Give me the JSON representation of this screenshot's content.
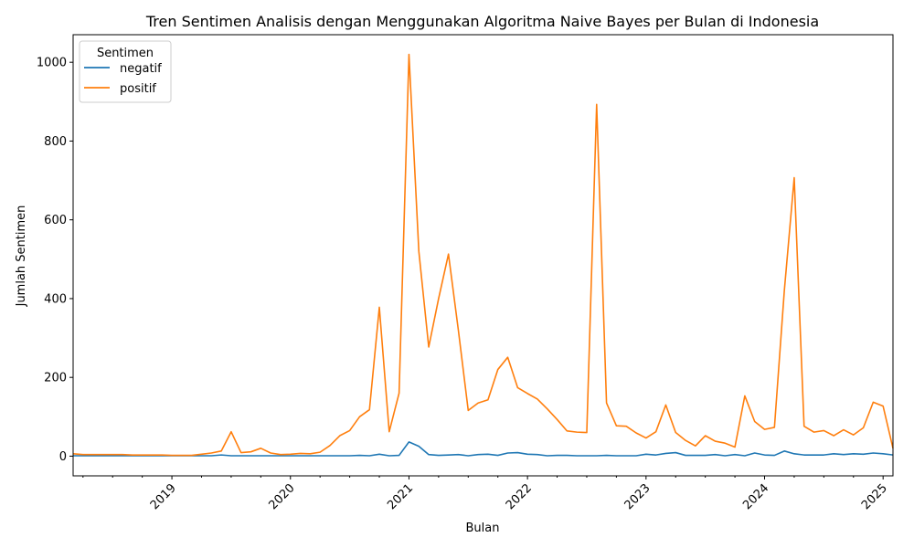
{
  "chart_data": {
    "type": "line",
    "title": "Tren Sentimen Analisis dengan Menggunakan Algoritma Naive Bayes per Bulan di Indonesia",
    "xlabel": "Bulan",
    "ylabel": "Jumlah Sentimen",
    "xlim": [
      "2018-03",
      "2025-02"
    ],
    "ylim": [
      -50,
      1070
    ],
    "x_ticks": [
      "2019",
      "2020",
      "2021",
      "2022",
      "2023",
      "2024",
      "2025"
    ],
    "y_ticks": [
      0,
      200,
      400,
      600,
      800,
      1000
    ],
    "grid": false,
    "legend": {
      "title": "Sentimen",
      "placement": "top-left"
    },
    "x": [
      "2018-03",
      "2018-04",
      "2018-05",
      "2018-06",
      "2018-07",
      "2018-08",
      "2018-09",
      "2018-10",
      "2018-11",
      "2018-12",
      "2019-01",
      "2019-02",
      "2019-03",
      "2019-04",
      "2019-05",
      "2019-06",
      "2019-07",
      "2019-08",
      "2019-09",
      "2019-10",
      "2019-11",
      "2019-12",
      "2020-01",
      "2020-02",
      "2020-03",
      "2020-04",
      "2020-05",
      "2020-06",
      "2020-07",
      "2020-08",
      "2020-09",
      "2020-10",
      "2020-11",
      "2020-12",
      "2021-01",
      "2021-02",
      "2021-03",
      "2021-04",
      "2021-05",
      "2021-06",
      "2021-07",
      "2021-08",
      "2021-09",
      "2021-10",
      "2021-11",
      "2021-12",
      "2022-01",
      "2022-02",
      "2022-03",
      "2022-04",
      "2022-05",
      "2022-06",
      "2022-07",
      "2022-08",
      "2022-09",
      "2022-10",
      "2022-11",
      "2022-12",
      "2023-01",
      "2023-02",
      "2023-03",
      "2023-04",
      "2023-05",
      "2023-06",
      "2023-07",
      "2023-08",
      "2023-09",
      "2023-10",
      "2023-11",
      "2023-12",
      "2024-01",
      "2024-02",
      "2024-03",
      "2024-04",
      "2024-05",
      "2024-06",
      "2024-07",
      "2024-08",
      "2024-09",
      "2024-10",
      "2024-11",
      "2024-12",
      "2025-01",
      "2025-02"
    ],
    "series": [
      {
        "name": "negatif",
        "color": "#1f77b4",
        "values": [
          1,
          1,
          1,
          1,
          1,
          1,
          1,
          1,
          1,
          1,
          1,
          1,
          1,
          1,
          1,
          3,
          1,
          1,
          1,
          1,
          1,
          1,
          1,
          1,
          1,
          1,
          1,
          1,
          1,
          2,
          1,
          5,
          1,
          2,
          36,
          25,
          4,
          2,
          3,
          4,
          1,
          4,
          5,
          2,
          8,
          9,
          5,
          4,
          1,
          2,
          2,
          1,
          1,
          1,
          2,
          1,
          1,
          1,
          5,
          3,
          7,
          9,
          2,
          2,
          2,
          4,
          1,
          4,
          1,
          8,
          3,
          2,
          13,
          6,
          3,
          3,
          3,
          6,
          4,
          6,
          5,
          8,
          6,
          3
        ]
      },
      {
        "name": "positif",
        "color": "#ff7f0e",
        "values": [
          6,
          4,
          4,
          4,
          4,
          4,
          3,
          3,
          3,
          3,
          2,
          2,
          2,
          5,
          8,
          13,
          62,
          9,
          11,
          20,
          8,
          4,
          5,
          7,
          6,
          10,
          27,
          52,
          65,
          100,
          118,
          378,
          62,
          160,
          1020,
          520,
          277,
          400,
          513,
          320,
          116,
          135,
          143,
          220,
          251,
          174,
          159,
          145,
          120,
          93,
          64,
          61,
          60,
          893,
          135,
          77,
          76,
          59,
          46,
          62,
          130,
          60,
          40,
          26,
          52,
          38,
          33,
          23,
          153,
          88,
          68,
          73,
          420,
          707,
          76,
          61,
          65,
          52,
          67,
          54,
          72,
          137,
          127,
          20
        ]
      }
    ]
  }
}
